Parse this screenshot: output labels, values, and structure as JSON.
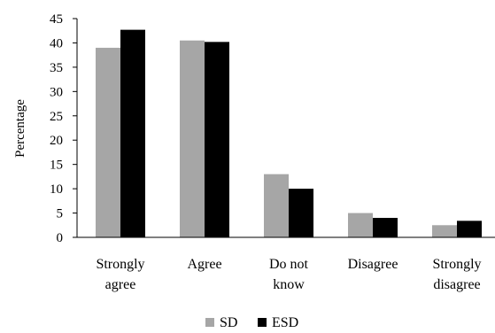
{
  "chart_data": {
    "type": "bar",
    "title": "",
    "xlabel": "",
    "ylabel": "Percentage",
    "ylim": [
      0,
      45
    ],
    "yticks": [
      0,
      5,
      10,
      15,
      20,
      25,
      30,
      35,
      40,
      45
    ],
    "grid": false,
    "legend_position": "bottom",
    "categories": [
      [
        "Strongly",
        "agree"
      ],
      [
        "Agree"
      ],
      [
        "Do not",
        "know"
      ],
      [
        "Disagree"
      ],
      [
        "Strongly",
        "disagree"
      ]
    ],
    "series": [
      {
        "name": "SD",
        "color": "#a6a6a6",
        "values": [
          39,
          40.5,
          13,
          5,
          2.5
        ]
      },
      {
        "name": "ESD",
        "color": "#000000",
        "values": [
          42.7,
          40.2,
          10,
          4,
          3.4
        ]
      }
    ]
  }
}
